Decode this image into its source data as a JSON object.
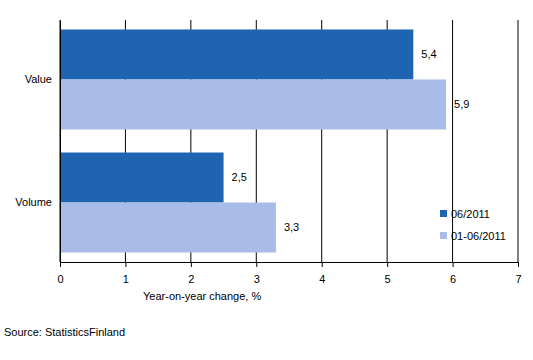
{
  "chart_data": {
    "type": "bar",
    "orientation": "horizontal",
    "categories": [
      "Value",
      "Volume"
    ],
    "series": [
      {
        "name": "06/2011",
        "color": "#1f64b0",
        "values": [
          5.4,
          2.5
        ],
        "value_labels": [
          "5,4",
          "2,5"
        ]
      },
      {
        "name": "01-06/2011",
        "color": "#a9bce8",
        "values": [
          5.9,
          3.3
        ],
        "value_labels": [
          "5,9",
          "3,3"
        ]
      }
    ],
    "xlabel": "Year-on-year change, %",
    "xlim": [
      0,
      7
    ],
    "xticks": [
      0,
      1,
      2,
      3,
      4,
      5,
      6,
      7
    ],
    "grid": true,
    "data_labels": true,
    "legend": "lower right",
    "annotations": [
      "Source: StatisticsFinland"
    ]
  }
}
